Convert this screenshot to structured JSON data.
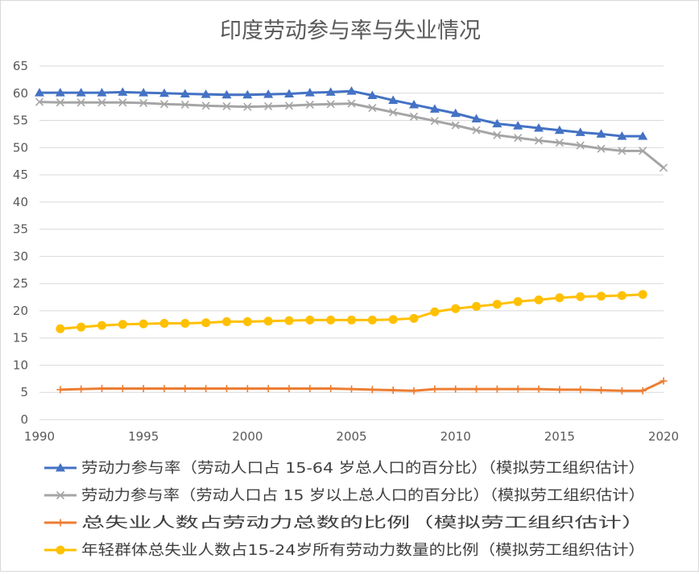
{
  "chart_data": {
    "type": "line",
    "title": "印度劳动参与率与失业情况",
    "xlabel": "",
    "ylabel": "",
    "xlim": [
      1990,
      2020
    ],
    "ylim": [
      0,
      65
    ],
    "x_ticks": [
      "1990",
      "1995",
      "2000",
      "2005",
      "2010",
      "2015",
      "2020"
    ],
    "y_ticks": [
      "0",
      "5",
      "10",
      "15",
      "20",
      "25",
      "30",
      "35",
      "40",
      "45",
      "50",
      "55",
      "60",
      "65"
    ],
    "grid": true,
    "legend_position": "bottom",
    "series": [
      {
        "name": "劳动力参与率（劳动人口占 15-64 岁总人口的百分比）（模拟劳工组织估计）",
        "color": "#4472c4",
        "marker": "triangle",
        "points": [
          [
            1990,
            60.1
          ],
          [
            1991,
            60.1
          ],
          [
            1992,
            60.1
          ],
          [
            1993,
            60.1
          ],
          [
            1994,
            60.2
          ],
          [
            1995,
            60.1
          ],
          [
            1996,
            60.0
          ],
          [
            1997,
            59.9
          ],
          [
            1998,
            59.8
          ],
          [
            1999,
            59.7
          ],
          [
            2000,
            59.7
          ],
          [
            2001,
            59.8
          ],
          [
            2002,
            59.9
          ],
          [
            2003,
            60.1
          ],
          [
            2004,
            60.2
          ],
          [
            2005,
            60.4
          ],
          [
            2006,
            59.6
          ],
          [
            2007,
            58.7
          ],
          [
            2008,
            57.9
          ],
          [
            2009,
            57.1
          ],
          [
            2010,
            56.3
          ],
          [
            2011,
            55.3
          ],
          [
            2012,
            54.4
          ],
          [
            2013,
            54.0
          ],
          [
            2014,
            53.6
          ],
          [
            2015,
            53.2
          ],
          [
            2016,
            52.8
          ],
          [
            2017,
            52.5
          ],
          [
            2018,
            52.1
          ],
          [
            2019,
            52.1
          ]
        ]
      },
      {
        "name": "劳动力参与率（劳动人口占 15 岁以上总人口的百分比）（模拟劳工组织估计）",
        "color": "#a5a5a5",
        "marker": "x",
        "points": [
          [
            1990,
            58.4
          ],
          [
            1991,
            58.3
          ],
          [
            1992,
            58.3
          ],
          [
            1993,
            58.3
          ],
          [
            1994,
            58.3
          ],
          [
            1995,
            58.2
          ],
          [
            1996,
            58.0
          ],
          [
            1997,
            57.9
          ],
          [
            1998,
            57.7
          ],
          [
            1999,
            57.6
          ],
          [
            2000,
            57.5
          ],
          [
            2001,
            57.6
          ],
          [
            2002,
            57.7
          ],
          [
            2003,
            57.9
          ],
          [
            2004,
            58.0
          ],
          [
            2005,
            58.1
          ],
          [
            2006,
            57.3
          ],
          [
            2007,
            56.5
          ],
          [
            2008,
            55.7
          ],
          [
            2009,
            54.9
          ],
          [
            2010,
            54.1
          ],
          [
            2011,
            53.2
          ],
          [
            2012,
            52.3
          ],
          [
            2013,
            51.8
          ],
          [
            2014,
            51.3
          ],
          [
            2015,
            50.9
          ],
          [
            2016,
            50.4
          ],
          [
            2017,
            49.8
          ],
          [
            2018,
            49.4
          ],
          [
            2019,
            49.4
          ],
          [
            2020,
            46.3
          ]
        ]
      },
      {
        "name": "总失业人数占劳动力总数的比例（模拟劳工组织估计）",
        "color": "#ed7d31",
        "marker": "plus",
        "points": [
          [
            1991,
            5.5
          ],
          [
            1992,
            5.6
          ],
          [
            1993,
            5.7
          ],
          [
            1994,
            5.7
          ],
          [
            1995,
            5.7
          ],
          [
            1996,
            5.7
          ],
          [
            1997,
            5.7
          ],
          [
            1998,
            5.7
          ],
          [
            1999,
            5.7
          ],
          [
            2000,
            5.7
          ],
          [
            2001,
            5.7
          ],
          [
            2002,
            5.7
          ],
          [
            2003,
            5.7
          ],
          [
            2004,
            5.7
          ],
          [
            2005,
            5.6
          ],
          [
            2006,
            5.5
          ],
          [
            2007,
            5.4
          ],
          [
            2008,
            5.3
          ],
          [
            2009,
            5.6
          ],
          [
            2010,
            5.6
          ],
          [
            2011,
            5.6
          ],
          [
            2012,
            5.6
          ],
          [
            2013,
            5.6
          ],
          [
            2014,
            5.6
          ],
          [
            2015,
            5.5
          ],
          [
            2016,
            5.5
          ],
          [
            2017,
            5.4
          ],
          [
            2018,
            5.3
          ],
          [
            2019,
            5.3
          ],
          [
            2020,
            7.1
          ]
        ]
      },
      {
        "name": "年轻群体总失业人数占15-24岁所有劳动力数量的比例（模拟劳工组织估计）",
        "color": "#ffc000",
        "marker": "circle",
        "points": [
          [
            1991,
            16.7
          ],
          [
            1992,
            17.0
          ],
          [
            1993,
            17.3
          ],
          [
            1994,
            17.5
          ],
          [
            1995,
            17.6
          ],
          [
            1996,
            17.7
          ],
          [
            1997,
            17.7
          ],
          [
            1998,
            17.8
          ],
          [
            1999,
            18.0
          ],
          [
            2000,
            18.0
          ],
          [
            2001,
            18.1
          ],
          [
            2002,
            18.2
          ],
          [
            2003,
            18.3
          ],
          [
            2004,
            18.3
          ],
          [
            2005,
            18.3
          ],
          [
            2006,
            18.3
          ],
          [
            2007,
            18.4
          ],
          [
            2008,
            18.6
          ],
          [
            2009,
            19.8
          ],
          [
            2010,
            20.4
          ],
          [
            2011,
            20.8
          ],
          [
            2012,
            21.2
          ],
          [
            2013,
            21.7
          ],
          [
            2014,
            22.0
          ],
          [
            2015,
            22.4
          ],
          [
            2016,
            22.6
          ],
          [
            2017,
            22.7
          ],
          [
            2018,
            22.8
          ],
          [
            2019,
            23.0
          ]
        ]
      }
    ]
  }
}
